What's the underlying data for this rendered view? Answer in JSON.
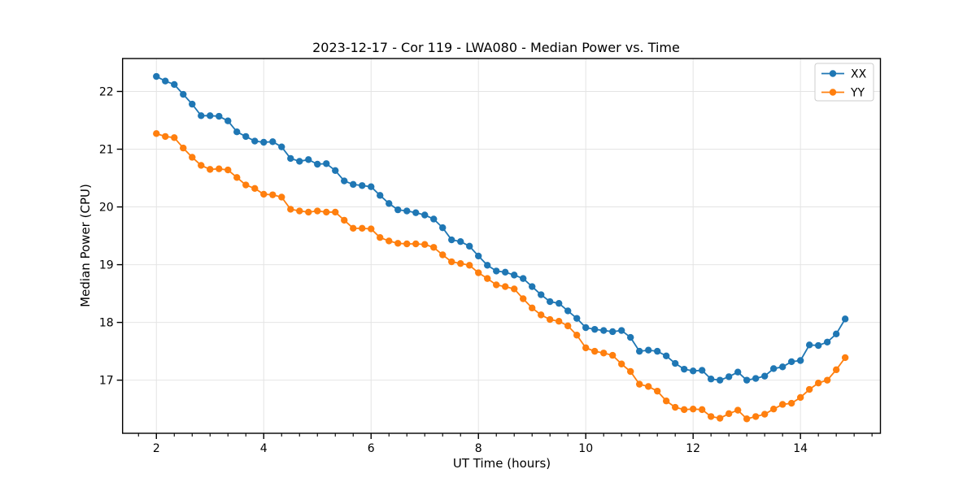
{
  "figure": {
    "title": "2023-12-17 - Cor 119 - LWA080 - Median Power vs. Time",
    "background_color": "#ffffff",
    "grid_color": "#e4e4e4",
    "spine_color": "#000000"
  },
  "chart_data": {
    "type": "line",
    "title": "2023-12-17 - Cor 119 - LWA080 - Median Power vs. Time",
    "xlabel": "UT Time (hours)",
    "ylabel": "Median Power (CPU)",
    "xlim": [
      1.37,
      15.49
    ],
    "ylim": [
      16.08,
      22.57
    ],
    "x_ticks": [
      2,
      4,
      6,
      8,
      10,
      12,
      14
    ],
    "y_ticks": [
      17,
      18,
      19,
      20,
      21,
      22
    ],
    "x_minor_step": 0.33333,
    "grid": true,
    "legend_position": "upper right",
    "marker": "circle",
    "x": [
      2.0,
      2.1667,
      2.3333,
      2.5,
      2.6667,
      2.8333,
      3.0,
      3.1667,
      3.3333,
      3.5,
      3.6667,
      3.8333,
      4.0,
      4.1667,
      4.3333,
      4.5,
      4.6667,
      4.8333,
      5.0,
      5.1667,
      5.3333,
      5.5,
      5.6667,
      5.8333,
      6.0,
      6.1667,
      6.3333,
      6.5,
      6.6667,
      6.8333,
      7.0,
      7.1667,
      7.3333,
      7.5,
      7.6667,
      7.8333,
      8.0,
      8.1667,
      8.3333,
      8.5,
      8.6667,
      8.8333,
      9.0,
      9.1667,
      9.3333,
      9.5,
      9.6667,
      9.8333,
      10.0,
      10.1667,
      10.3333,
      10.5,
      10.6667,
      10.8333,
      11.0,
      11.1667,
      11.3333,
      11.5,
      11.6667,
      11.8333,
      12.0,
      12.1667,
      12.3333,
      12.5,
      12.6667,
      12.8333,
      13.0,
      13.1667,
      13.3333,
      13.5,
      13.6667,
      13.8333,
      14.0,
      14.1667,
      14.3333,
      14.5,
      14.6667,
      14.8333
    ],
    "series": [
      {
        "name": "XX",
        "color": "#1f77b4",
        "values": [
          22.26,
          22.18,
          22.12,
          21.95,
          21.78,
          21.58,
          21.58,
          21.57,
          21.49,
          21.3,
          21.22,
          21.14,
          21.12,
          21.13,
          21.04,
          20.84,
          20.79,
          20.82,
          20.74,
          20.75,
          20.63,
          20.45,
          20.39,
          20.37,
          20.35,
          20.2,
          20.06,
          19.95,
          19.93,
          19.9,
          19.86,
          19.79,
          19.64,
          19.43,
          19.4,
          19.32,
          19.15,
          18.99,
          18.89,
          18.87,
          18.82,
          18.76,
          18.62,
          18.48,
          18.36,
          18.33,
          18.2,
          18.07,
          17.91,
          17.88,
          17.86,
          17.84,
          17.86,
          17.74,
          17.5,
          17.52,
          17.5,
          17.42,
          17.29,
          17.19,
          17.16,
          17.17,
          17.02,
          17.0,
          17.06,
          17.14,
          17.0,
          17.03,
          17.07,
          17.2,
          17.23,
          17.32,
          17.34,
          17.61,
          17.6,
          17.66,
          17.8,
          18.06
        ]
      },
      {
        "name": "YY",
        "color": "#ff7f0e",
        "values": [
          21.27,
          21.22,
          21.2,
          21.02,
          20.86,
          20.72,
          20.65,
          20.66,
          20.64,
          20.51,
          20.38,
          20.32,
          20.22,
          20.21,
          20.17,
          19.96,
          19.93,
          19.91,
          19.93,
          19.91,
          19.91,
          19.77,
          19.63,
          19.63,
          19.62,
          19.47,
          19.41,
          19.37,
          19.36,
          19.36,
          19.35,
          19.3,
          19.17,
          19.05,
          19.02,
          18.99,
          18.86,
          18.76,
          18.65,
          18.62,
          18.58,
          18.41,
          18.25,
          18.13,
          18.05,
          18.02,
          17.94,
          17.78,
          17.56,
          17.5,
          17.47,
          17.43,
          17.28,
          17.15,
          16.93,
          16.89,
          16.81,
          16.64,
          16.53,
          16.49,
          16.5,
          16.49,
          16.37,
          16.34,
          16.42,
          16.48,
          16.33,
          16.37,
          16.41,
          16.5,
          16.58,
          16.6,
          16.7,
          16.84,
          16.95,
          17.0,
          17.18,
          17.39
        ]
      }
    ]
  },
  "legend": {
    "items": [
      {
        "label": "XX",
        "color": "#1f77b4"
      },
      {
        "label": "YY",
        "color": "#ff7f0e"
      }
    ]
  }
}
